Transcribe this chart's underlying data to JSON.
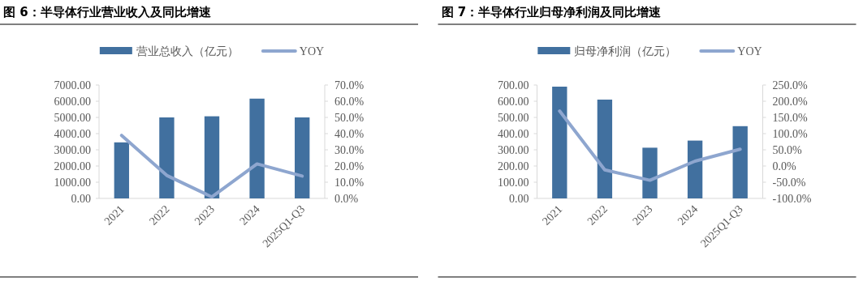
{
  "chart_data": [
    {
      "type": "bar",
      "title": "图 6：半导体行业营业收入及同比增速",
      "categories": [
        "2021",
        "2022",
        "2023",
        "2024",
        "2025Q1-Q3"
      ],
      "legend": "top",
      "marker": "none",
      "series": [
        {
          "name": "营业总收入（亿元）",
          "color": "#41709f",
          "values": [
            3460,
            5000,
            5070,
            6160,
            5000
          ]
        },
        {
          "name": "YOY",
          "type": "line",
          "axis": "y2",
          "color": "#8ea6cf",
          "values": [
            38.9,
            14.2,
            0.9,
            21.3,
            13.8
          ]
        }
      ],
      "ylim": [
        0,
        7000
      ],
      "yticks": [
        {
          "value": 0,
          "label": "0.00"
        },
        {
          "value": 1000,
          "label": "1000.00"
        },
        {
          "value": 2000,
          "label": "2000.00"
        },
        {
          "value": 3000,
          "label": "3000.00"
        },
        {
          "value": 4000,
          "label": "4000.00"
        },
        {
          "value": 5000,
          "label": "5000.00"
        },
        {
          "value": 6000,
          "label": "6000.00"
        },
        {
          "value": 7000,
          "label": "7000.00"
        }
      ],
      "y2lim": [
        0,
        70
      ],
      "y2ticks": [
        {
          "value": 0,
          "label": "0.0%"
        },
        {
          "value": 10,
          "label": "10.0%"
        },
        {
          "value": 20,
          "label": "20.0%"
        },
        {
          "value": 30,
          "label": "30.0%"
        },
        {
          "value": 40,
          "label": "40.0%"
        },
        {
          "value": 50,
          "label": "50.0%"
        },
        {
          "value": 60,
          "label": "60.0%"
        },
        {
          "value": 70,
          "label": "70.0%"
        }
      ]
    },
    {
      "type": "bar",
      "title": "图 7：半导体行业归母净利润及同比增速",
      "categories": [
        "2021",
        "2022",
        "2023",
        "2024",
        "2025Q1-Q3"
      ],
      "legend": "top",
      "marker": "none",
      "series": [
        {
          "name": "归母净利润（亿元）",
          "color": "#41709f",
          "values": [
            690,
            610,
            313,
            357,
            446
          ]
        },
        {
          "name": "YOY",
          "type": "line",
          "axis": "y2",
          "color": "#8ea6cf",
          "values": [
            170,
            -12,
            -44,
            15,
            52
          ]
        }
      ],
      "ylim": [
        0,
        700
      ],
      "yticks": [
        {
          "value": 0,
          "label": "0.00"
        },
        {
          "value": 100,
          "label": "100.00"
        },
        {
          "value": 200,
          "label": "200.00"
        },
        {
          "value": 300,
          "label": "300.00"
        },
        {
          "value": 400,
          "label": "400.00"
        },
        {
          "value": 500,
          "label": "500.00"
        },
        {
          "value": 600,
          "label": "600.00"
        },
        {
          "value": 700,
          "label": "700.00"
        }
      ],
      "y2lim": [
        -100,
        250
      ],
      "y2ticks": [
        {
          "value": -100,
          "label": "-100.0%"
        },
        {
          "value": -50,
          "label": "-50.0%"
        },
        {
          "value": 0,
          "label": "0.0%"
        },
        {
          "value": 50,
          "label": "50.0%"
        },
        {
          "value": 100,
          "label": "100.0%"
        },
        {
          "value": 150,
          "label": "150.0%"
        },
        {
          "value": 200,
          "label": "200.0%"
        },
        {
          "value": 250,
          "label": "250.0%"
        }
      ]
    }
  ]
}
